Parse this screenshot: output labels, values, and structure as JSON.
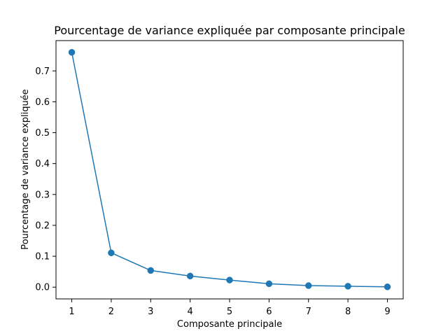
{
  "chart_data": {
    "type": "line",
    "title": "Pourcentage de variance expliquée par composante principale",
    "xlabel": "Composante principale",
    "ylabel": "Pourcentage de variance expliquée",
    "x": [
      1,
      2,
      3,
      4,
      5,
      6,
      7,
      8,
      9
    ],
    "series": [
      {
        "values": [
          0.76,
          0.111,
          0.054,
          0.036,
          0.023,
          0.011,
          0.005,
          0.003,
          0.001
        ],
        "color": "#1f77b4",
        "marker": "circle"
      }
    ],
    "xticks": [
      "1",
      "2",
      "3",
      "4",
      "5",
      "6",
      "7",
      "8",
      "9"
    ],
    "yticks": [
      "0.0",
      "0.1",
      "0.2",
      "0.3",
      "0.4",
      "0.5",
      "0.6",
      "0.7"
    ],
    "xlim": [
      0.6,
      9.4
    ],
    "ylim": [
      -0.038,
      0.798
    ],
    "grid": false,
    "legend": false
  }
}
